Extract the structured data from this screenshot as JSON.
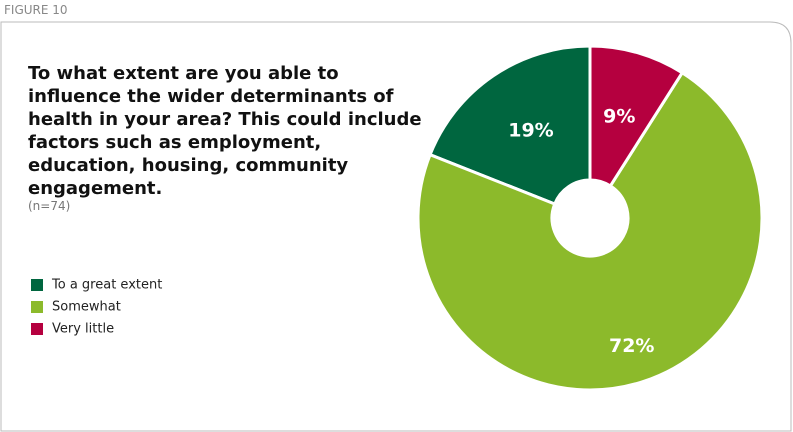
{
  "figure_label": "FIGURE 10",
  "chart_data": {
    "type": "donut",
    "title": "To what extent are you able to influence the wider determinants of health in your area? This could include factors such as employment, education, housing, community engagement.",
    "subtitle": "(n=74)",
    "categories": [
      "To a great extent",
      "Somewhat",
      "Very little"
    ],
    "values": [
      19,
      72,
      9
    ],
    "value_labels": [
      "19%",
      "72%",
      "9%"
    ],
    "colors": [
      "#00663f",
      "#8cba2b",
      "#b5003f"
    ],
    "direction": "counterclockwise",
    "legend": "left"
  }
}
